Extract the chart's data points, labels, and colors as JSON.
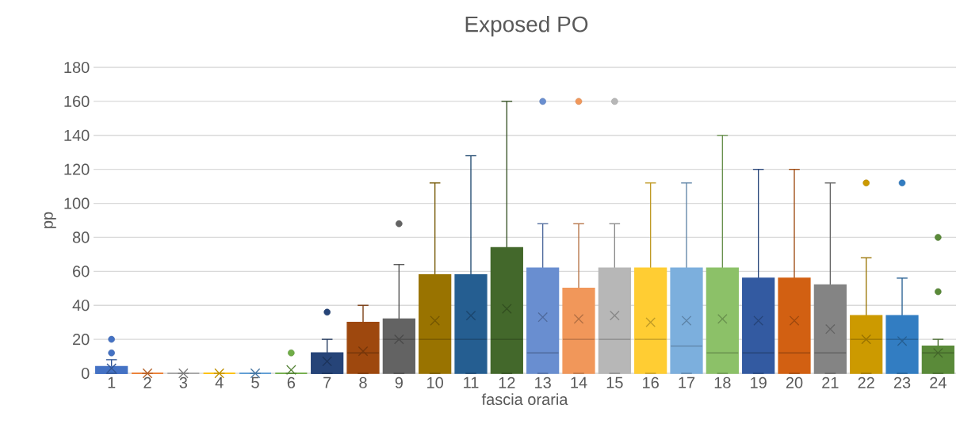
{
  "chart_data": {
    "type": "box",
    "title": "Exposed PO",
    "xlabel": "fascia oraria",
    "ylabel": "pp",
    "categories": [
      "1",
      "2",
      "3",
      "4",
      "5",
      "6",
      "7",
      "8",
      "9",
      "10",
      "11",
      "12",
      "13",
      "14",
      "15",
      "16",
      "17",
      "18",
      "19",
      "20",
      "21",
      "22",
      "23",
      "24"
    ],
    "colors": [
      "#4472c4",
      "#ed7d31",
      "#a5a5a5",
      "#ffc000",
      "#5b9bd5",
      "#70ad47",
      "#264478",
      "#9e480e",
      "#636363",
      "#997300",
      "#255e91",
      "#43682b",
      "#698ed0",
      "#f1975a",
      "#b7b7b7",
      "#ffcd33",
      "#7cafdd",
      "#8cc168",
      "#335aa1",
      "#d26012",
      "#848484",
      "#cc9a00",
      "#327dc2",
      "#5a8a39"
    ],
    "boxes": [
      {
        "low": 0,
        "q1": 0,
        "median": 0,
        "q3": 4,
        "high": 8,
        "mean": 3,
        "outliers": [
          12,
          20
        ]
      },
      {
        "low": 0,
        "q1": 0,
        "median": 0,
        "q3": 0,
        "high": 0,
        "mean": 0
      },
      {
        "low": 0,
        "q1": 0,
        "median": 0,
        "q3": 0,
        "high": 0,
        "mean": 0
      },
      {
        "low": 0,
        "q1": 0,
        "median": 0,
        "q3": 0,
        "high": 0,
        "mean": 0
      },
      {
        "low": 0,
        "q1": 0,
        "median": 0,
        "q3": 0,
        "high": 0,
        "mean": 0
      },
      {
        "low": 0,
        "q1": 0,
        "median": 0,
        "q3": 0,
        "high": 0,
        "mean": 2,
        "outliers": [
          12
        ]
      },
      {
        "low": 0,
        "q1": 0,
        "median": 0,
        "q3": 12,
        "high": 20,
        "mean": 7,
        "outliers": [
          36
        ]
      },
      {
        "low": 0,
        "q1": 0,
        "median": 12,
        "q3": 30,
        "high": 40,
        "mean": 13
      },
      {
        "low": 0,
        "q1": 0,
        "median": 20,
        "q3": 32,
        "high": 64,
        "mean": 20,
        "outliers": [
          88
        ]
      },
      {
        "low": 0,
        "q1": 0,
        "median": 20,
        "q3": 58,
        "high": 112,
        "mean": 31
      },
      {
        "low": 0,
        "q1": 0,
        "median": 20,
        "q3": 58,
        "high": 128,
        "mean": 34
      },
      {
        "low": 0,
        "q1": 0,
        "median": 20,
        "q3": 74,
        "high": 160,
        "mean": 38
      },
      {
        "low": 0,
        "q1": 0,
        "median": 12,
        "q3": 62,
        "high": 88,
        "mean": 33,
        "outliers": [
          160
        ]
      },
      {
        "low": 0,
        "q1": 0,
        "median": 20,
        "q3": 50,
        "high": 88,
        "mean": 32,
        "outliers": [
          160
        ]
      },
      {
        "low": 0,
        "q1": 0,
        "median": 20,
        "q3": 62,
        "high": 88,
        "mean": 34,
        "outliers": [
          160
        ]
      },
      {
        "low": 0,
        "q1": 0,
        "median": 20,
        "q3": 62,
        "high": 112,
        "mean": 30
      },
      {
        "low": 0,
        "q1": 0,
        "median": 16,
        "q3": 62,
        "high": 112,
        "mean": 31
      },
      {
        "low": 0,
        "q1": 0,
        "median": 12,
        "q3": 62,
        "high": 140,
        "mean": 32
      },
      {
        "low": 0,
        "q1": 0,
        "median": 12,
        "q3": 56,
        "high": 120,
        "mean": 31
      },
      {
        "low": 0,
        "q1": 0,
        "median": 12,
        "q3": 56,
        "high": 120,
        "mean": 31
      },
      {
        "low": 0,
        "q1": 0,
        "median": 12,
        "q3": 52,
        "high": 112,
        "mean": 26
      },
      {
        "low": 0,
        "q1": 0,
        "median": 20,
        "q3": 34,
        "high": 68,
        "mean": 20,
        "outliers": [
          112
        ]
      },
      {
        "low": 0,
        "q1": 0,
        "median": 20,
        "q3": 34,
        "high": 56,
        "mean": 19,
        "outliers": [
          112
        ]
      },
      {
        "low": 0,
        "q1": 0,
        "median": 12,
        "q3": 16,
        "high": 20,
        "mean": 12,
        "outliers": [
          48,
          80
        ]
      }
    ],
    "ylim": [
      0,
      180
    ],
    "yticks": [
      0,
      20,
      40,
      60,
      80,
      100,
      120,
      140,
      160,
      180
    ],
    "grid": "y"
  }
}
